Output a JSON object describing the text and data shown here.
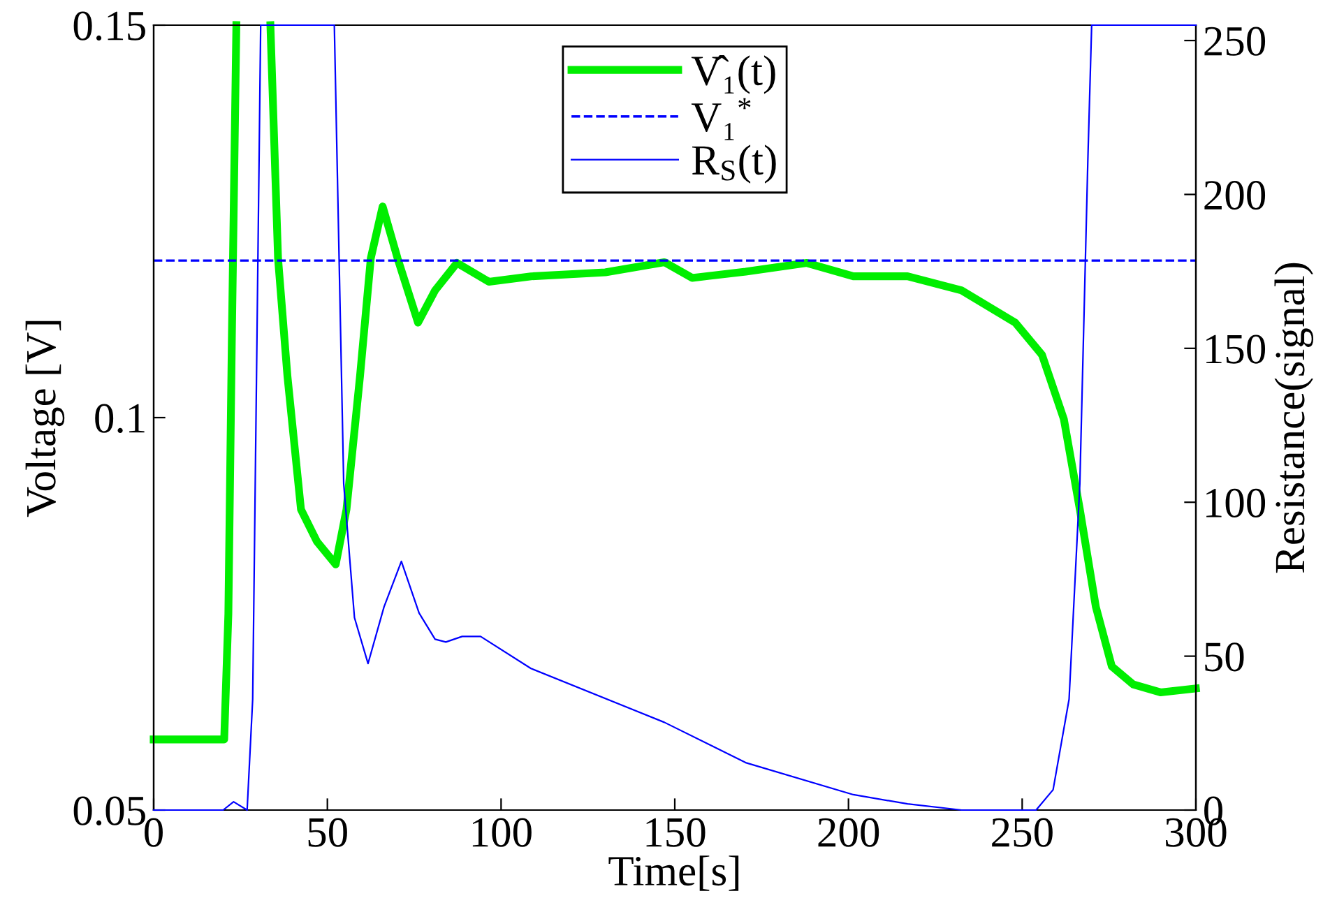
{
  "chart_data": {
    "type": "line",
    "xlabel": "Time[s]",
    "ylabel": "Voltage [V]",
    "y2label": "Resistance(signal)",
    "xlim": [
      0,
      300
    ],
    "xticks": [
      0,
      50,
      100,
      150,
      200,
      250,
      300
    ],
    "ylim": [
      0.05,
      0.15
    ],
    "yticks": [
      0.05,
      0.1,
      0.15
    ],
    "y2lim": [
      0,
      255
    ],
    "y2ticks": [
      0,
      50,
      100,
      150,
      200,
      250
    ],
    "grid": false,
    "legend": "top",
    "marker": "none",
    "series": [
      {
        "name": "V̂₁(t)",
        "color": "#00ee00",
        "line_style": "solid",
        "x": [
          0,
          10,
          20.3,
          21.5,
          22.5,
          23.8,
          null,
          33.6,
          35.8,
          38.5,
          42.4,
          47,
          52.4,
          55.5,
          59.4,
          62.5,
          65.9,
          70.2,
          76.1,
          81,
          87.3,
          96.5,
          108.6,
          130,
          147,
          155,
          170.4,
          188,
          201.4,
          217,
          232.6,
          248,
          255.7,
          262,
          266.6,
          271.2,
          275.8,
          282,
          289.8,
          300
        ],
        "values": [
          0.059,
          0.059,
          0.059,
          0.075,
          0.11,
          0.15,
          null,
          0.15,
          0.1203,
          0.1053,
          0.0883,
          0.0842,
          0.0813,
          0.0883,
          0.1053,
          0.1203,
          0.1269,
          0.1203,
          0.1121,
          0.1162,
          0.1197,
          0.1173,
          0.118,
          0.1185,
          0.1198,
          0.1178,
          0.1186,
          0.1197,
          0.118,
          0.118,
          0.1162,
          0.1121,
          0.108,
          0.0998,
          0.0883,
          0.0759,
          0.0683,
          0.066,
          0.065,
          0.0655
        ]
      },
      {
        "name": "V₁$^{*}$",
        "color": "#0000ff",
        "line_style": "dashed",
        "x": [
          0,
          300
        ],
        "values": [
          0.12,
          0.12
        ]
      },
      {
        "name": "R$_{S}$(t)",
        "color": "#0000ff",
        "line_style": "solid",
        "axis": "y2",
        "x": [
          0,
          20,
          23,
          26.9,
          28.5,
          30.8,
          52,
          54.7,
          57.8,
          61.7,
          66.3,
          71.3,
          76.4,
          81,
          84.1,
          88.8,
          94.1,
          108.6,
          147,
          170.4,
          201.4,
          217,
          232.6,
          254,
          258.9,
          263.5,
          266.6,
          268.9,
          270,
          300
        ],
        "values": [
          0,
          0,
          2.7,
          0,
          36,
          255,
          255,
          106,
          62.5,
          47.6,
          66,
          80.8,
          64,
          55.5,
          54.6,
          56.4,
          56.4,
          46,
          28.5,
          15.4,
          5,
          2,
          0,
          0,
          6.6,
          36,
          106,
          211,
          255,
          255
        ]
      }
    ]
  }
}
